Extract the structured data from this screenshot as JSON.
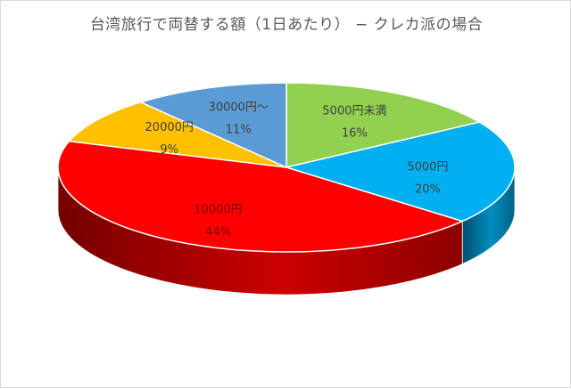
{
  "chart_data": {
    "type": "pie",
    "title": "台湾旅行で両替する額（1日あたり） − クレカ派の場合",
    "slices": [
      {
        "label": "5000円未満",
        "value": 16,
        "value_label": "16%",
        "color": "#92d050",
        "label_color": "#404040"
      },
      {
        "label": "5000円",
        "value": 20,
        "value_label": "20%",
        "color": "#00b0f0",
        "label_color": "#404040"
      },
      {
        "label": "10000円",
        "value": 44,
        "value_label": "44%",
        "color": "#ff0000",
        "label_color": "#7f0000"
      },
      {
        "label": "20000円",
        "value": 9,
        "value_label": "9%",
        "color": "#ffc000",
        "label_color": "#404040"
      },
      {
        "label": "30000円〜",
        "value": 11,
        "value_label": "11%",
        "color": "#5b9bd5",
        "label_color": "#404040"
      }
    ],
    "legend": "none",
    "style": "3d"
  }
}
